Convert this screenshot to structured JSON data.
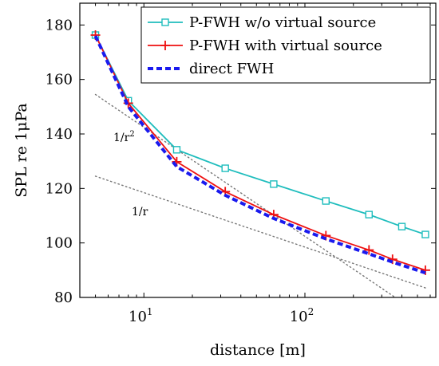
{
  "chart_data": {
    "type": "line",
    "xscale": "log",
    "xlabel": "distance [m]",
    "ylabel": "SPL re 1μPa",
    "xlim": [
      4,
      650
    ],
    "ylim": [
      80,
      188
    ],
    "x_ticks": [
      {
        "value": 10,
        "base": "10",
        "exp": "1"
      },
      {
        "value": 100,
        "base": "10",
        "exp": "2"
      }
    ],
    "y_ticks": [
      80,
      100,
      120,
      140,
      160,
      180
    ],
    "grid": false,
    "legend_position": "top-right",
    "series": [
      {
        "name": "P-FWH w/o virtual source",
        "color": "#1fbdbd",
        "marker": "square",
        "dash": "solid",
        "x": [
          5,
          8,
          16,
          32,
          64,
          135,
          250,
          400,
          560
        ],
        "y": [
          176.3,
          152.2,
          134.2,
          127.4,
          121.6,
          115.4,
          110.4,
          106.0,
          103.1
        ]
      },
      {
        "name": "P-FWH with virtual source",
        "color": "#ee1111",
        "marker": "plus",
        "dash": "solid",
        "x": [
          5,
          8,
          16,
          32,
          64,
          135,
          250,
          350,
          560
        ],
        "y": [
          176.3,
          151.3,
          129.8,
          118.8,
          110.4,
          102.7,
          97.4,
          94.0,
          90.0
        ]
      },
      {
        "name": "direct FWH",
        "color": "#1a1aee",
        "marker": "none",
        "dash": "dashed",
        "x": [
          5,
          8,
          16,
          32,
          64,
          135,
          250,
          350,
          560
        ],
        "y": [
          176.0,
          150.0,
          128.0,
          117.5,
          109.0,
          101.5,
          96.0,
          93.0,
          89.0
        ]
      }
    ],
    "reference_lines": [
      {
        "label": "1/r",
        "x": [
          5,
          560
        ],
        "y": [
          124.5,
          83.5
        ]
      },
      {
        "label": "1/r",
        "sup": "2",
        "x": [
          5,
          560
        ],
        "y": [
          154.5,
          72.5
        ]
      }
    ]
  }
}
